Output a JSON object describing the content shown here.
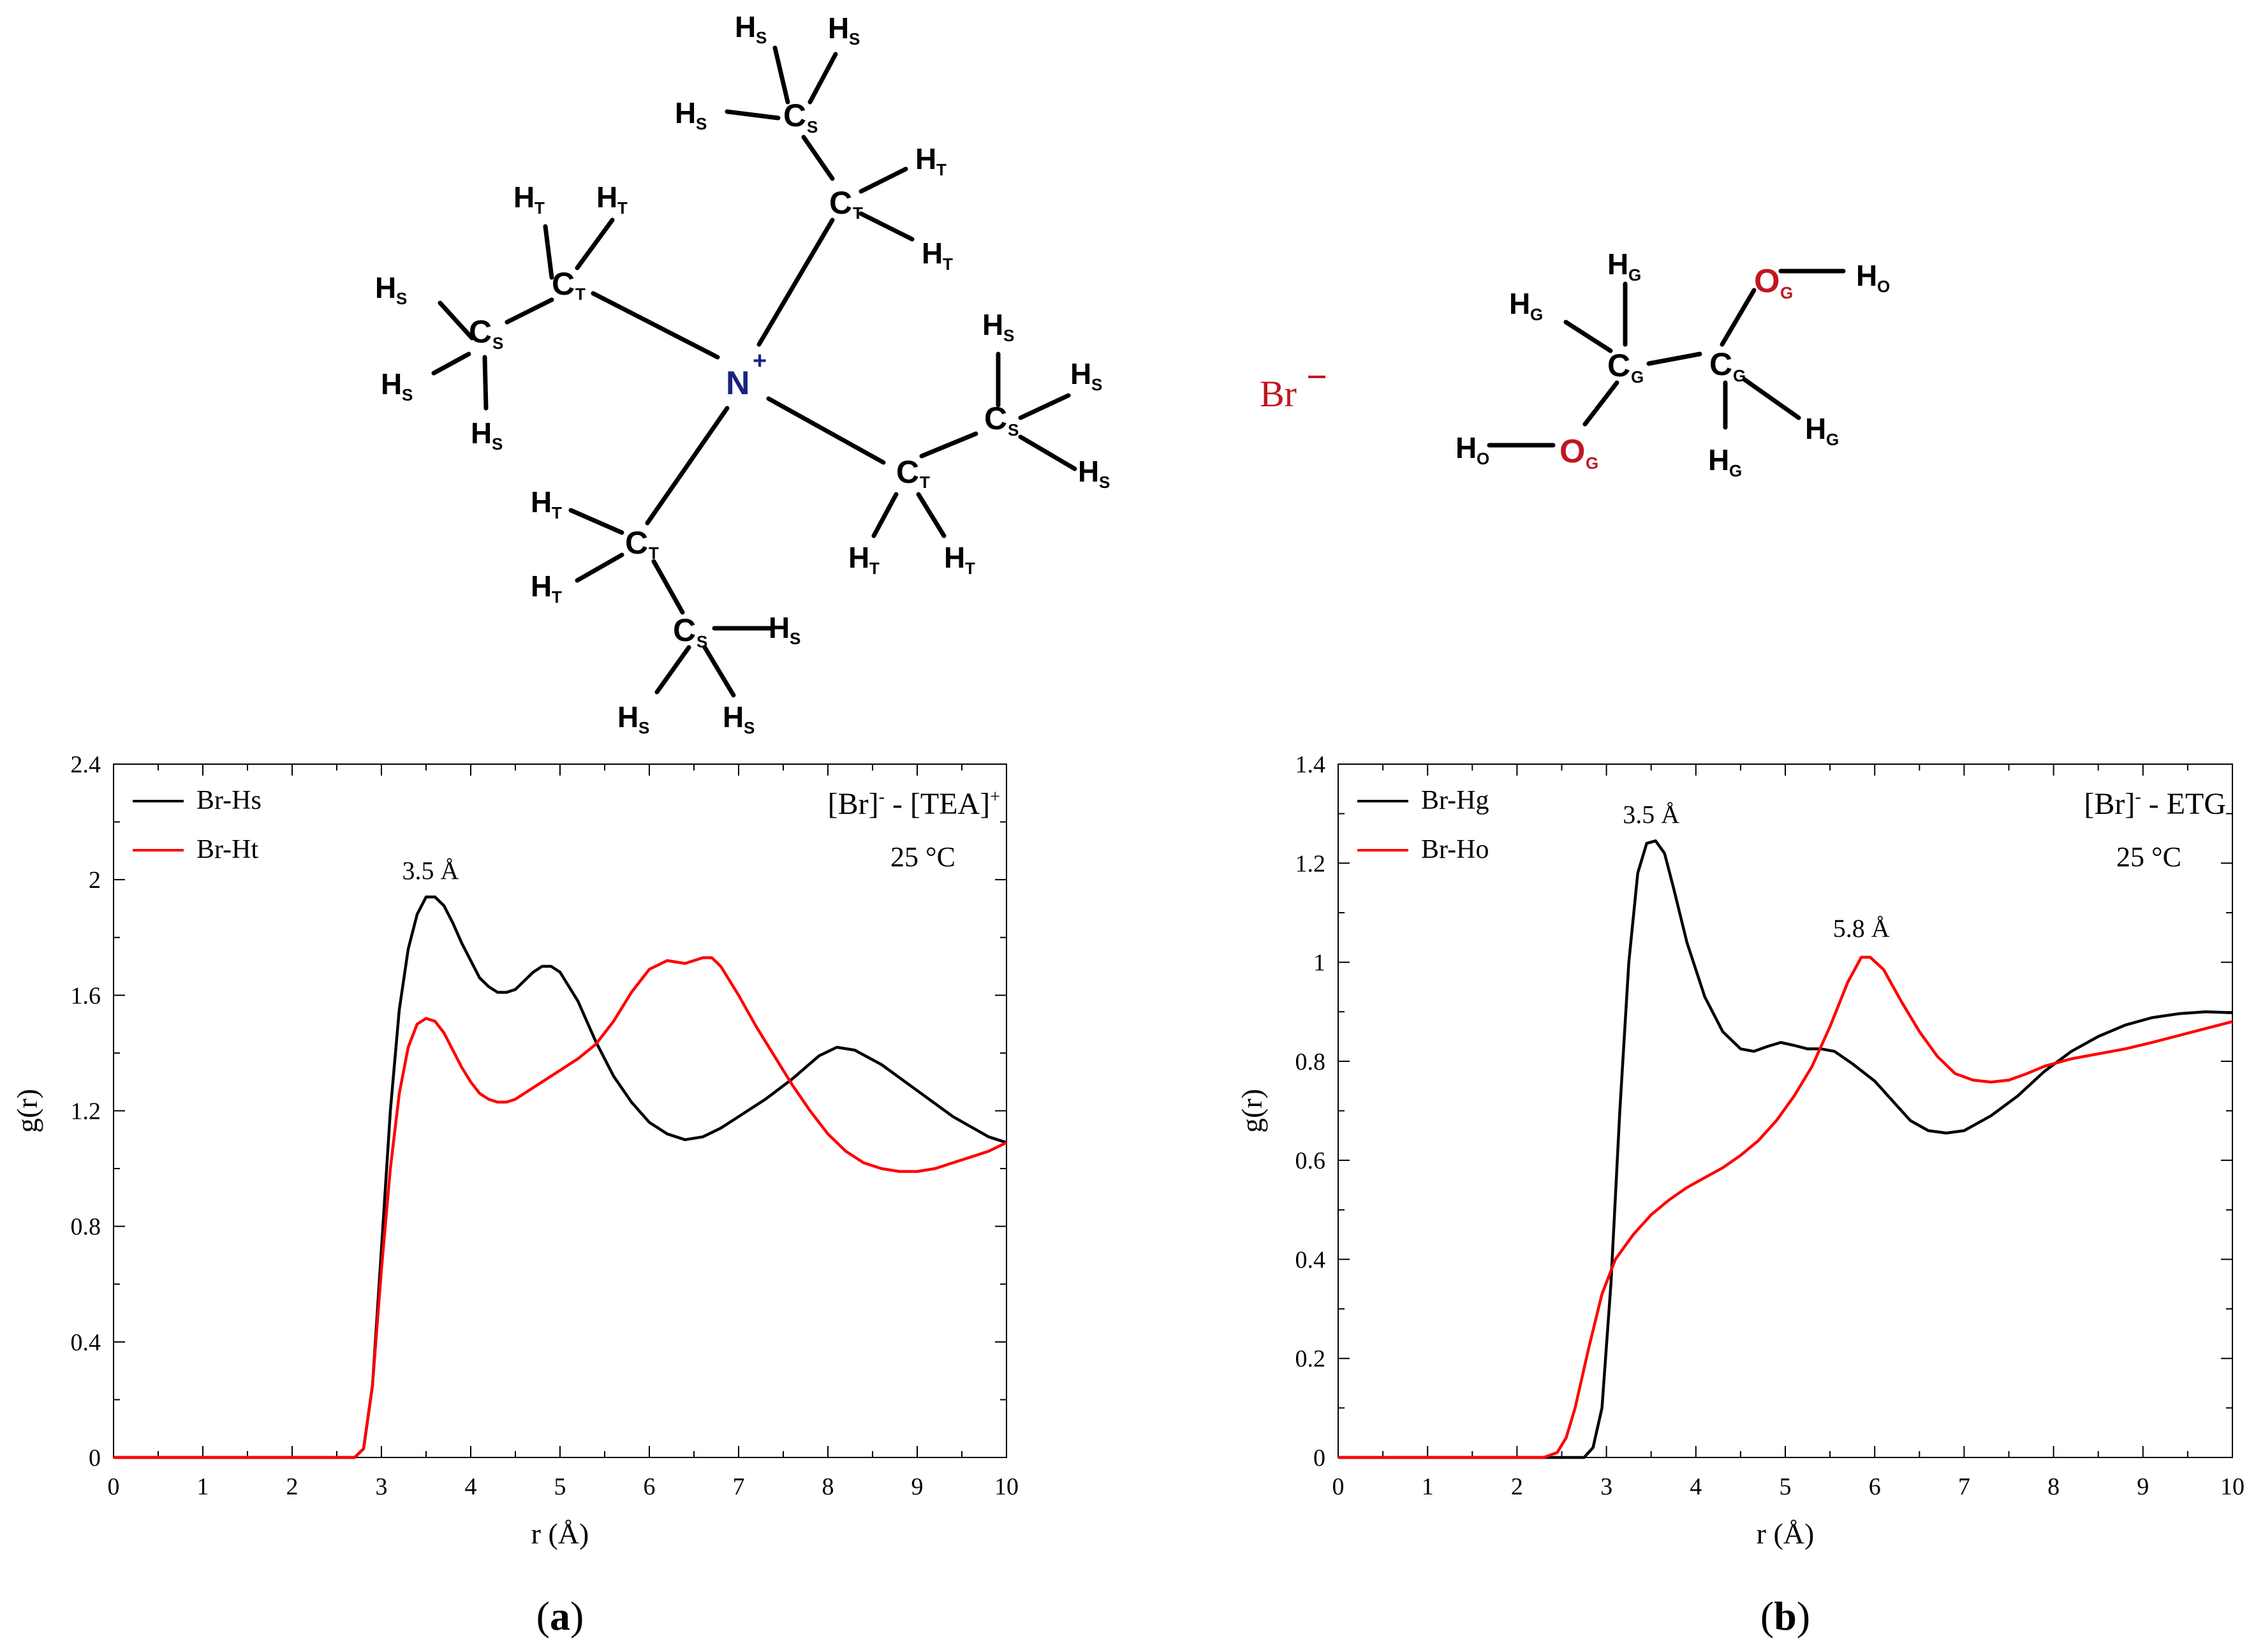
{
  "colors": {
    "black_series": "#000000",
    "red_series": "#ff0000",
    "nitrogen": "#1a237e",
    "oxygen_bromide": "#c0161f"
  },
  "molecules": {
    "tea": {
      "N": "N",
      "N_charge": "+",
      "C": "C",
      "H": "H",
      "sub_S": "S",
      "sub_T": "T"
    },
    "bromide": {
      "symbol": "Br",
      "charge": "−"
    },
    "etg": {
      "C": "C",
      "O": "O",
      "H": "H",
      "sub_G": "G",
      "sub_O": "O"
    }
  },
  "chart_data": [
    {
      "type": "line",
      "panel_label": "a",
      "title_parts": {
        "a": "[Br]",
        "b": "-",
        "c": " - [TEA]",
        "d": "+"
      },
      "subtitle": "25 °C",
      "xlabel": "r (Å)",
      "ylabel": "g(r)",
      "xlim": [
        0,
        10
      ],
      "ylim": [
        0,
        2.4
      ],
      "xticks": [
        "0",
        "1",
        "2",
        "3",
        "4",
        "5",
        "6",
        "7",
        "8",
        "9",
        "10"
      ],
      "yticks": [
        "0",
        "0.4",
        "0.8",
        "1.2",
        "1.6",
        "2",
        "2.4"
      ],
      "legend_position": "top-left",
      "annotations": [
        {
          "text": "3.5 Å",
          "x": 3.55,
          "y": 1.94
        }
      ],
      "series": [
        {
          "name": "Br-Hs",
          "color": "#000000",
          "points": [
            [
              0,
              0
            ],
            [
              2.7,
              0
            ],
            [
              2.8,
              0.03
            ],
            [
              2.9,
              0.25
            ],
            [
              3.0,
              0.72
            ],
            [
              3.1,
              1.2
            ],
            [
              3.2,
              1.55
            ],
            [
              3.3,
              1.76
            ],
            [
              3.4,
              1.88
            ],
            [
              3.5,
              1.94
            ],
            [
              3.6,
              1.94
            ],
            [
              3.7,
              1.91
            ],
            [
              3.8,
              1.85
            ],
            [
              3.9,
              1.78
            ],
            [
              4.0,
              1.72
            ],
            [
              4.1,
              1.66
            ],
            [
              4.2,
              1.63
            ],
            [
              4.3,
              1.61
            ],
            [
              4.4,
              1.61
            ],
            [
              4.5,
              1.62
            ],
            [
              4.6,
              1.65
            ],
            [
              4.7,
              1.68
            ],
            [
              4.8,
              1.7
            ],
            [
              4.9,
              1.7
            ],
            [
              5.0,
              1.68
            ],
            [
              5.2,
              1.58
            ],
            [
              5.4,
              1.44
            ],
            [
              5.6,
              1.32
            ],
            [
              5.8,
              1.23
            ],
            [
              6.0,
              1.16
            ],
            [
              6.2,
              1.12
            ],
            [
              6.4,
              1.1
            ],
            [
              6.6,
              1.11
            ],
            [
              6.8,
              1.14
            ],
            [
              7.0,
              1.18
            ],
            [
              7.3,
              1.24
            ],
            [
              7.6,
              1.31
            ],
            [
              7.9,
              1.39
            ],
            [
              8.1,
              1.42
            ],
            [
              8.3,
              1.41
            ],
            [
              8.6,
              1.36
            ],
            [
              9.0,
              1.27
            ],
            [
              9.4,
              1.18
            ],
            [
              9.8,
              1.11
            ],
            [
              10.0,
              1.09
            ]
          ]
        },
        {
          "name": "Br-Ht",
          "color": "#ff0000",
          "points": [
            [
              0,
              0
            ],
            [
              2.7,
              0
            ],
            [
              2.8,
              0.03
            ],
            [
              2.9,
              0.25
            ],
            [
              3.0,
              0.65
            ],
            [
              3.1,
              1.0
            ],
            [
              3.2,
              1.26
            ],
            [
              3.3,
              1.42
            ],
            [
              3.4,
              1.5
            ],
            [
              3.5,
              1.52
            ],
            [
              3.6,
              1.51
            ],
            [
              3.7,
              1.47
            ],
            [
              3.8,
              1.41
            ],
            [
              3.9,
              1.35
            ],
            [
              4.0,
              1.3
            ],
            [
              4.1,
              1.26
            ],
            [
              4.2,
              1.24
            ],
            [
              4.3,
              1.23
            ],
            [
              4.4,
              1.23
            ],
            [
              4.5,
              1.24
            ],
            [
              4.6,
              1.26
            ],
            [
              4.8,
              1.3
            ],
            [
              5.0,
              1.34
            ],
            [
              5.2,
              1.38
            ],
            [
              5.4,
              1.43
            ],
            [
              5.6,
              1.51
            ],
            [
              5.8,
              1.61
            ],
            [
              6.0,
              1.69
            ],
            [
              6.2,
              1.72
            ],
            [
              6.4,
              1.71
            ],
            [
              6.6,
              1.73
            ],
            [
              6.7,
              1.73
            ],
            [
              6.8,
              1.7
            ],
            [
              7.0,
              1.6
            ],
            [
              7.2,
              1.49
            ],
            [
              7.4,
              1.39
            ],
            [
              7.6,
              1.29
            ],
            [
              7.8,
              1.2
            ],
            [
              8.0,
              1.12
            ],
            [
              8.2,
              1.06
            ],
            [
              8.4,
              1.02
            ],
            [
              8.6,
              1.0
            ],
            [
              8.8,
              0.99
            ],
            [
              9.0,
              0.99
            ],
            [
              9.2,
              1.0
            ],
            [
              9.4,
              1.02
            ],
            [
              9.6,
              1.04
            ],
            [
              9.8,
              1.06
            ],
            [
              10.0,
              1.09
            ]
          ]
        }
      ]
    },
    {
      "type": "line",
      "panel_label": "b",
      "title_parts": {
        "a": "[Br]",
        "b": "-",
        "c": " - ETG",
        "d": ""
      },
      "subtitle": "25 °C",
      "xlabel": "r (Å)",
      "ylabel": "g(r)",
      "xlim": [
        0,
        10
      ],
      "ylim": [
        0,
        1.4
      ],
      "xticks": [
        "0",
        "1",
        "2",
        "3",
        "4",
        "5",
        "6",
        "7",
        "8",
        "9",
        "10"
      ],
      "yticks": [
        "0",
        "0.2",
        "0.4",
        "0.6",
        "0.8",
        "1",
        "1.2",
        "1.4"
      ],
      "legend_position": "top-left",
      "annotations": [
        {
          "text": "3.5 Å",
          "x": 3.5,
          "y": 1.245
        },
        {
          "text": "5.8 Å",
          "x": 5.85,
          "y": 1.015
        }
      ],
      "series": [
        {
          "name": "Br-Hg",
          "color": "#000000",
          "points": [
            [
              0,
              0
            ],
            [
              2.75,
              0
            ],
            [
              2.85,
              0.02
            ],
            [
              2.95,
              0.1
            ],
            [
              3.05,
              0.35
            ],
            [
              3.15,
              0.7
            ],
            [
              3.25,
              1.0
            ],
            [
              3.35,
              1.18
            ],
            [
              3.45,
              1.24
            ],
            [
              3.55,
              1.245
            ],
            [
              3.65,
              1.22
            ],
            [
              3.75,
              1.15
            ],
            [
              3.9,
              1.04
            ],
            [
              4.1,
              0.93
            ],
            [
              4.3,
              0.86
            ],
            [
              4.5,
              0.825
            ],
            [
              4.65,
              0.82
            ],
            [
              4.8,
              0.83
            ],
            [
              4.95,
              0.838
            ],
            [
              5.1,
              0.832
            ],
            [
              5.25,
              0.825
            ],
            [
              5.4,
              0.825
            ],
            [
              5.55,
              0.82
            ],
            [
              5.75,
              0.795
            ],
            [
              6.0,
              0.76
            ],
            [
              6.2,
              0.72
            ],
            [
              6.4,
              0.68
            ],
            [
              6.6,
              0.66
            ],
            [
              6.8,
              0.655
            ],
            [
              7.0,
              0.66
            ],
            [
              7.3,
              0.69
            ],
            [
              7.6,
              0.73
            ],
            [
              7.9,
              0.78
            ],
            [
              8.2,
              0.82
            ],
            [
              8.5,
              0.85
            ],
            [
              8.8,
              0.873
            ],
            [
              9.1,
              0.888
            ],
            [
              9.4,
              0.896
            ],
            [
              9.7,
              0.9
            ],
            [
              10.0,
              0.898
            ]
          ]
        },
        {
          "name": "Br-Ho",
          "color": "#ff0000",
          "points": [
            [
              0,
              0
            ],
            [
              2.3,
              0
            ],
            [
              2.45,
              0.01
            ],
            [
              2.55,
              0.04
            ],
            [
              2.65,
              0.1
            ],
            [
              2.8,
              0.22
            ],
            [
              2.95,
              0.33
            ],
            [
              3.1,
              0.4
            ],
            [
              3.3,
              0.45
            ],
            [
              3.5,
              0.49
            ],
            [
              3.7,
              0.52
            ],
            [
              3.9,
              0.545
            ],
            [
              4.1,
              0.565
            ],
            [
              4.3,
              0.585
            ],
            [
              4.5,
              0.61
            ],
            [
              4.7,
              0.64
            ],
            [
              4.9,
              0.68
            ],
            [
              5.1,
              0.73
            ],
            [
              5.3,
              0.79
            ],
            [
              5.5,
              0.87
            ],
            [
              5.7,
              0.96
            ],
            [
              5.85,
              1.01
            ],
            [
              5.95,
              1.01
            ],
            [
              6.1,
              0.985
            ],
            [
              6.3,
              0.92
            ],
            [
              6.5,
              0.86
            ],
            [
              6.7,
              0.81
            ],
            [
              6.9,
              0.775
            ],
            [
              7.1,
              0.762
            ],
            [
              7.3,
              0.758
            ],
            [
              7.5,
              0.762
            ],
            [
              7.7,
              0.775
            ],
            [
              7.9,
              0.79
            ],
            [
              8.2,
              0.805
            ],
            [
              8.5,
              0.815
            ],
            [
              8.8,
              0.825
            ],
            [
              9.1,
              0.838
            ],
            [
              9.4,
              0.852
            ],
            [
              9.7,
              0.866
            ],
            [
              10.0,
              0.88
            ]
          ]
        }
      ]
    }
  ]
}
